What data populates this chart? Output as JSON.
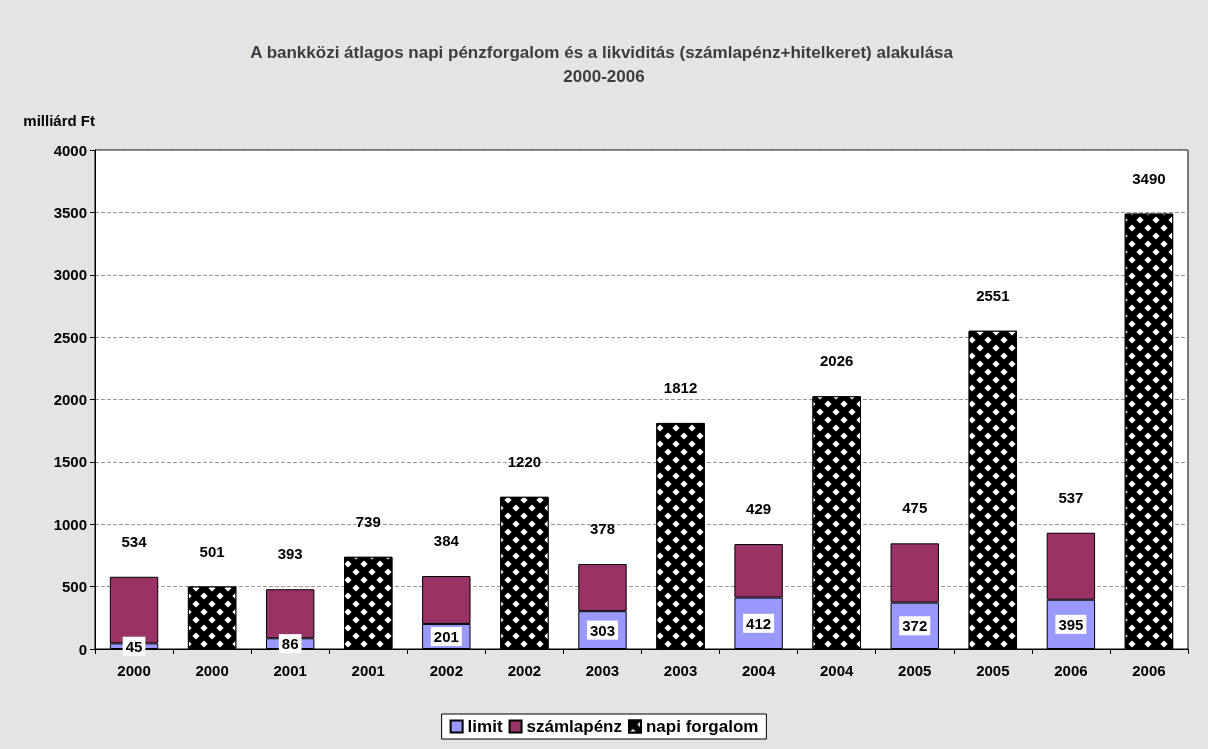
{
  "chart_data": {
    "type": "bar",
    "title": "A bankközi átlagos napi pénzforgalom és a likviditás (számlapénz+hitelkeret) alakulása 2000-2006",
    "ylabel": "milliárd Ft",
    "categories": [
      "2000",
      "2000",
      "2001",
      "2001",
      "2002",
      "2002",
      "2003",
      "2003",
      "2004",
      "2004",
      "2005",
      "2005",
      "2006",
      "2006"
    ],
    "stacked": true,
    "data_labels": true,
    "grid": "y",
    "legend": "bottom",
    "ylim": [
      0,
      4000
    ],
    "yticks": [
      0,
      500,
      1000,
      1500,
      2000,
      2500,
      3000,
      3500,
      4000
    ],
    "series": [
      {
        "name": "limit",
        "color": "#9999ff",
        "values": [
          45,
          null,
          86,
          null,
          201,
          null,
          303,
          null,
          412,
          null,
          372,
          null,
          395,
          null
        ]
      },
      {
        "name": "számlapénz",
        "color": "#993366",
        "values": [
          534,
          null,
          393,
          null,
          384,
          null,
          378,
          null,
          429,
          null,
          475,
          null,
          537,
          null
        ]
      },
      {
        "name": "napi forgalom",
        "color": "#000000",
        "values": [
          null,
          501,
          null,
          739,
          null,
          1220,
          null,
          1812,
          null,
          2026,
          null,
          2551,
          null,
          3490
        ]
      }
    ]
  }
}
